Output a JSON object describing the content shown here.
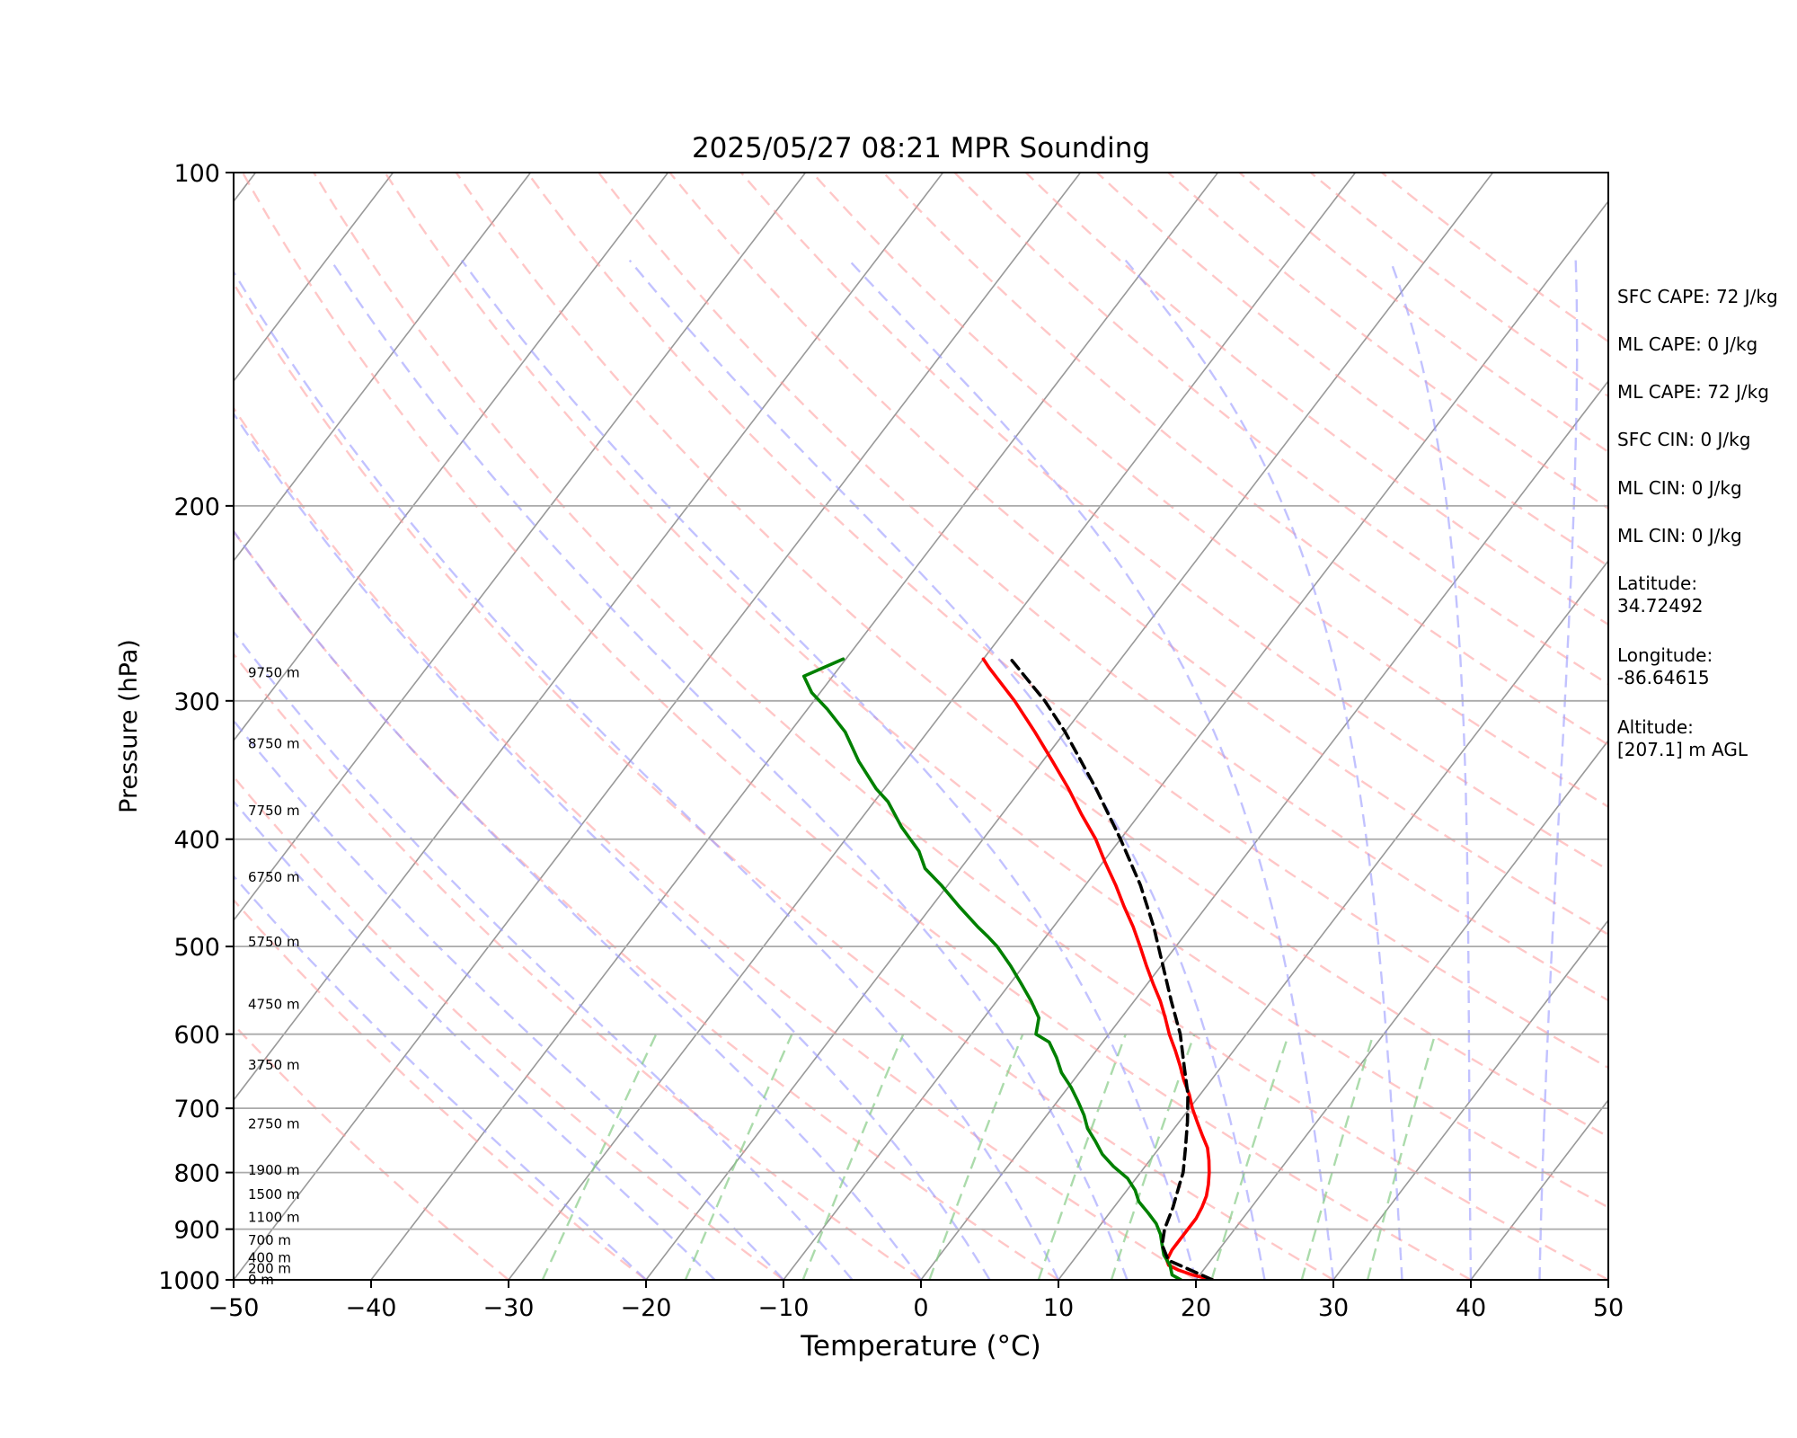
{
  "chart_data": {
    "type": "line",
    "title": "2025/05/27 08:21 MPR Sounding",
    "xlabel": "Temperature (°C)",
    "ylabel": "Pressure (hPa)",
    "xlim": [
      -50,
      50
    ],
    "ylim": [
      1000,
      100
    ],
    "y_scale": "log",
    "skew": "temperature lines skewed with height",
    "x_ticks": [
      "−50",
      "−40",
      "−30",
      "−20",
      "−10",
      "0",
      "10",
      "20",
      "30",
      "40",
      "50"
    ],
    "y_ticks": [
      "100",
      "200",
      "300",
      "400",
      "500",
      "600",
      "700",
      "800",
      "900",
      "1000"
    ],
    "height_labels": [
      {
        "p": 1000,
        "label": "0 m"
      },
      {
        "p": 977,
        "label": "200 m"
      },
      {
        "p": 955,
        "label": "400 m"
      },
      {
        "p": 921,
        "label": "700 m"
      },
      {
        "p": 878,
        "label": "1100 m"
      },
      {
        "p": 837,
        "label": "1500 m"
      },
      {
        "p": 796,
        "label": "1900 m"
      },
      {
        "p": 723,
        "label": "2750 m"
      },
      {
        "p": 640,
        "label": "3750 m"
      },
      {
        "p": 564,
        "label": "4750 m"
      },
      {
        "p": 495,
        "label": "5750 m"
      },
      {
        "p": 433,
        "label": "6750 m"
      },
      {
        "p": 377,
        "label": "7750 m"
      },
      {
        "p": 328,
        "label": "8750 m"
      },
      {
        "p": 283,
        "label": "9750 m"
      }
    ],
    "series": [
      {
        "role": "temperature",
        "color": "#ff0000",
        "points": [
          [
            1000,
            21.2
          ],
          [
            990,
            19.5
          ],
          [
            980,
            18.2
          ],
          [
            970,
            17.2
          ],
          [
            960,
            16.8
          ],
          [
            940,
            16.6
          ],
          [
            920,
            16.6
          ],
          [
            900,
            16.6
          ],
          [
            880,
            16.6
          ],
          [
            860,
            16.4
          ],
          [
            840,
            16.1
          ],
          [
            820,
            15.6
          ],
          [
            800,
            15.0
          ],
          [
            780,
            14.3
          ],
          [
            760,
            13.5
          ],
          [
            740,
            12.4
          ],
          [
            720,
            11.3
          ],
          [
            700,
            10.2
          ],
          [
            680,
            9.2
          ],
          [
            660,
            8.0
          ],
          [
            640,
            6.9
          ],
          [
            620,
            5.7
          ],
          [
            600,
            4.4
          ],
          [
            580,
            3.2
          ],
          [
            560,
            1.9
          ],
          [
            540,
            0.4
          ],
          [
            520,
            -1.1
          ],
          [
            500,
            -2.6
          ],
          [
            480,
            -4.2
          ],
          [
            460,
            -6.0
          ],
          [
            440,
            -7.8
          ],
          [
            420,
            -9.8
          ],
          [
            400,
            -11.8
          ],
          [
            380,
            -14.2
          ],
          [
            360,
            -16.6
          ],
          [
            340,
            -19.3
          ],
          [
            320,
            -22.2
          ],
          [
            300,
            -25.4
          ],
          [
            280,
            -29.1
          ],
          [
            275,
            -30.0
          ]
        ]
      },
      {
        "role": "dewpoint",
        "color": "#008000",
        "points": [
          [
            1000,
            18.9
          ],
          [
            990,
            18.0
          ],
          [
            970,
            17.3
          ],
          [
            950,
            16.3
          ],
          [
            930,
            15.6
          ],
          [
            910,
            14.9
          ],
          [
            890,
            14.0
          ],
          [
            870,
            12.8
          ],
          [
            850,
            11.5
          ],
          [
            830,
            10.6
          ],
          [
            810,
            9.4
          ],
          [
            790,
            7.7
          ],
          [
            770,
            6.2
          ],
          [
            750,
            5.0
          ],
          [
            730,
            3.7
          ],
          [
            710,
            2.7
          ],
          [
            690,
            1.5
          ],
          [
            670,
            0.2
          ],
          [
            650,
            -1.3
          ],
          [
            630,
            -2.5
          ],
          [
            610,
            -3.9
          ],
          [
            600,
            -5.3
          ],
          [
            580,
            -6.0
          ],
          [
            560,
            -7.5
          ],
          [
            540,
            -9.2
          ],
          [
            520,
            -11.0
          ],
          [
            500,
            -13.0
          ],
          [
            490,
            -14.2
          ],
          [
            480,
            -15.5
          ],
          [
            460,
            -18.0
          ],
          [
            440,
            -20.5
          ],
          [
            425,
            -22.6
          ],
          [
            410,
            -24.0
          ],
          [
            390,
            -26.6
          ],
          [
            370,
            -29.0
          ],
          [
            360,
            -30.6
          ],
          [
            340,
            -33.4
          ],
          [
            320,
            -36.0
          ],
          [
            305,
            -38.6
          ],
          [
            295,
            -40.6
          ],
          [
            285,
            -42.1
          ],
          [
            275,
            -40.2
          ]
        ]
      },
      {
        "role": "parcel",
        "color": "#000000",
        "points": [
          [
            1000,
            21.2
          ],
          [
            960,
            16.9
          ],
          [
            930,
            15.6
          ],
          [
            900,
            14.9
          ],
          [
            860,
            14.3
          ],
          [
            820,
            13.5
          ],
          [
            800,
            13.1
          ],
          [
            760,
            11.9
          ],
          [
            720,
            10.6
          ],
          [
            680,
            9.1
          ],
          [
            640,
            7.2
          ],
          [
            600,
            5.2
          ],
          [
            560,
            2.7
          ],
          [
            520,
            0.1
          ],
          [
            480,
            -2.7
          ],
          [
            440,
            -6.0
          ],
          [
            400,
            -10.0
          ],
          [
            360,
            -14.6
          ],
          [
            320,
            -20.0
          ],
          [
            300,
            -23.2
          ],
          [
            275,
            -28.0
          ]
        ]
      }
    ]
  },
  "info": {
    "sfc_cape": "SFC CAPE: 72 J/kg",
    "ml_cape_1": "ML CAPE: 0 J/kg",
    "ml_cape_2": "ML CAPE: 72 J/kg",
    "sfc_cin": "SFC CIN: 0 J/kg",
    "ml_cin_1": "ML CIN: 0 J/kg",
    "ml_cin_2": "ML CIN: 0 J/kg",
    "latitude_label": "Latitude:",
    "latitude_value": "34.72492",
    "longitude_label": "Longitude:",
    "longitude_value": "-86.64615",
    "altitude_label": "Altitude:",
    "altitude_value": "[207.1] m AGL"
  },
  "colors": {
    "temperature": "#ff0000",
    "dewpoint": "#008000",
    "parcel": "#000000",
    "isotherm": "#999999",
    "dry_adiabat": "#ff9999",
    "moist_adiabat": "#9999ff",
    "mixing_ratio": "#88cc88",
    "grid": "#aaaaaa"
  }
}
